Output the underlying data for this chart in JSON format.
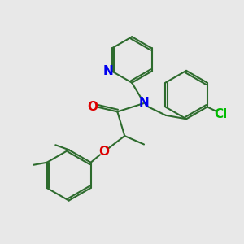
{
  "background_color": "#e8e8e8",
  "bond_color": "#2d6b2d",
  "N_color": "#0000ee",
  "O_color": "#dd0000",
  "Cl_color": "#00bb00",
  "line_width": 1.5,
  "font_size": 10,
  "fig_size": [
    3.0,
    3.0
  ],
  "dpi": 100,
  "xlim": [
    0,
    10
  ],
  "ylim": [
    0,
    10
  ]
}
